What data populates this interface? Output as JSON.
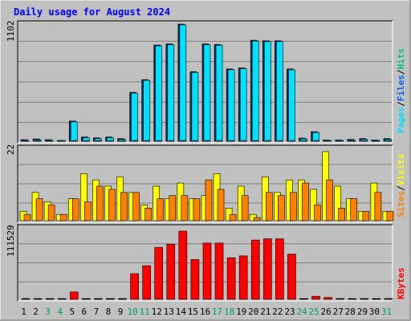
{
  "chart_data": [
    {
      "type": "bar",
      "title": "Daily usage for August 2024",
      "ymax_label": "1102",
      "legend": [
        "Pages",
        "/",
        "Files",
        "/",
        "Hits"
      ],
      "categories": [
        "1",
        "2",
        "3",
        "4",
        "5",
        "6",
        "7",
        "8",
        "9",
        "10",
        "11",
        "12",
        "13",
        "14",
        "15",
        "16",
        "17",
        "18",
        "19",
        "20",
        "21",
        "22",
        "23",
        "24",
        "25",
        "26",
        "27",
        "28",
        "29",
        "30",
        "31"
      ],
      "weekend_days": [
        "3",
        "4",
        "10",
        "11",
        "17",
        "18",
        "24",
        "25",
        "31"
      ],
      "ylim": [
        0,
        1102
      ],
      "series": [
        {
          "name": "Pages",
          "values": [
            0,
            0,
            0,
            0,
            0,
            0,
            0,
            0,
            0,
            0,
            0,
            0,
            0,
            0,
            0,
            0,
            0,
            0,
            0,
            0,
            0,
            0,
            0,
            0,
            0,
            0,
            0,
            0,
            0,
            0,
            0
          ]
        },
        {
          "name": "Files",
          "values": [
            15,
            22,
            15,
            7,
            190,
            40,
            32,
            40,
            25,
            460,
            580,
            905,
            915,
            1102,
            655,
            915,
            910,
            680,
            690,
            950,
            945,
            945,
            680,
            30,
            90,
            12,
            12,
            17,
            25,
            12,
            25
          ]
        },
        {
          "name": "Hits",
          "values": [
            15,
            22,
            15,
            7,
            190,
            40,
            32,
            40,
            25,
            460,
            580,
            905,
            915,
            1102,
            655,
            915,
            910,
            680,
            690,
            950,
            945,
            945,
            680,
            30,
            90,
            12,
            12,
            17,
            25,
            12,
            25
          ]
        }
      ]
    },
    {
      "type": "bar",
      "ymax_label": "22",
      "legend": [
        "Sites",
        "/",
        "Visits"
      ],
      "ylim": [
        0,
        22
      ],
      "series": [
        {
          "name": "Visits",
          "values": [
            3,
            9,
            6,
            2,
            7,
            15,
            13,
            11,
            14,
            9,
            5,
            11,
            7,
            12,
            7,
            8,
            15,
            4,
            11,
            2,
            14,
            9,
            13,
            13,
            10,
            22,
            11,
            7,
            3,
            12,
            3
          ]
        },
        {
          "name": "Sites",
          "values": [
            2,
            7,
            5,
            2,
            7,
            6,
            11,
            10,
            9,
            9,
            4,
            7,
            8,
            8,
            7,
            13,
            10,
            2,
            8,
            1,
            9,
            8,
            9,
            12,
            5,
            13,
            4,
            7,
            3,
            9,
            3
          ]
        }
      ]
    },
    {
      "type": "bar",
      "ymax_label": "111529",
      "legend": [
        "KBytes"
      ],
      "ylim": [
        0,
        111529
      ],
      "series": [
        {
          "name": "KBytes",
          "values": [
            0,
            0,
            0,
            0,
            12000,
            0,
            0,
            0,
            0,
            42000,
            55000,
            85000,
            90000,
            111529,
            65000,
            92000,
            92000,
            68000,
            71000,
            97000,
            99000,
            99000,
            74000,
            0,
            5000,
            3000,
            0,
            0,
            0,
            0,
            0
          ]
        }
      ]
    }
  ],
  "colors": {
    "pages": "#00e0ff",
    "files": "#0060ff",
    "hits": "#00c080",
    "visits": "#ffff00",
    "sites": "#ff8000",
    "kbytes": "#ff0000",
    "title": "#0000ff",
    "weekday_label": "#000000",
    "weekend_label": "#00a060"
  }
}
